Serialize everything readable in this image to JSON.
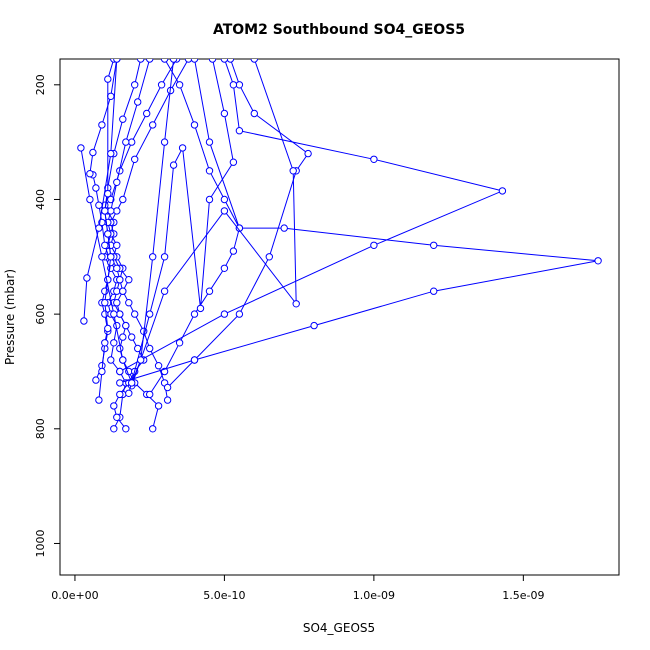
{
  "chart_data": {
    "type": "line",
    "title": "ATOM2 Southbound SO4_GEOS5",
    "xlabel": "SO4_GEOS5",
    "ylabel": "Pressure (mbar)",
    "xlim": [
      -5e-11,
      1.82e-09
    ],
    "ylim": [
      1055,
      155
    ],
    "y_reversed": true,
    "x_ticks": [
      0,
      5e-10,
      1e-09,
      1.5e-09
    ],
    "x_tick_labels": [
      "0.0e+00",
      "5.0e-10",
      "1.0e-09",
      "1.5e-09"
    ],
    "y_ticks": [
      200,
      400,
      600,
      800,
      1000
    ],
    "y_tick_labels": [
      "200",
      "400",
      "600",
      "800",
      "1000"
    ],
    "grid": false,
    "marker": "open-circle",
    "line_color": "#0000ff",
    "series": [
      {
        "points": [
          [
            1.3e-10,
            800
          ],
          [
            1.5e-10,
            780
          ],
          [
            1.6e-10,
            740
          ],
          [
            1.7e-10,
            720
          ],
          [
            1.5e-10,
            700
          ],
          [
            1.2e-10,
            680
          ],
          [
            1.3e-10,
            650
          ],
          [
            1.4e-10,
            620
          ],
          [
            1.2e-10,
            600
          ],
          [
            1.1e-10,
            580
          ],
          [
            1.3e-10,
            560
          ],
          [
            1.4e-10,
            540
          ],
          [
            1.2e-10,
            520
          ],
          [
            1e-10,
            500
          ],
          [
            1.1e-10,
            480
          ],
          [
            1.2e-10,
            460
          ],
          [
            1.3e-10,
            440
          ],
          [
            1.1e-10,
            420
          ],
          [
            1e-10,
            410
          ],
          [
            1.2e-10,
            400
          ],
          [
            1.5e-10,
            350
          ],
          [
            1.9e-10,
            300
          ],
          [
            2.4e-10,
            250
          ],
          [
            2.9e-10,
            200
          ],
          [
            3.4e-10,
            155
          ]
        ]
      },
      {
        "points": [
          [
            2.6e-10,
            800
          ],
          [
            2.8e-10,
            760
          ],
          [
            2.4e-10,
            740
          ],
          [
            2e-10,
            720
          ],
          [
            1.8e-10,
            700
          ],
          [
            1.6e-10,
            680
          ],
          [
            1.5e-10,
            660
          ],
          [
            1.6e-10,
            640
          ],
          [
            1.7e-10,
            620
          ],
          [
            1.5e-10,
            600
          ],
          [
            1.3e-10,
            580
          ],
          [
            1.4e-10,
            560
          ],
          [
            1.5e-10,
            540
          ],
          [
            1.6e-10,
            520
          ],
          [
            1.4e-10,
            500
          ],
          [
            1.2e-10,
            480
          ],
          [
            1.3e-10,
            460
          ],
          [
            1.2e-10,
            440
          ],
          [
            1.4e-10,
            420
          ],
          [
            1.6e-10,
            400
          ],
          [
            2e-10,
            330
          ],
          [
            2.6e-10,
            270
          ],
          [
            3.2e-10,
            210
          ],
          [
            3.8e-10,
            155
          ]
        ]
      },
      {
        "points": [
          [
            1.7e-10,
            800
          ],
          [
            1.4e-10,
            780
          ],
          [
            1.3e-10,
            760
          ],
          [
            1.5e-10,
            740
          ],
          [
            1.8e-10,
            720
          ],
          [
            2e-10,
            700
          ],
          [
            2.3e-10,
            680
          ],
          [
            2.1e-10,
            660
          ],
          [
            1.9e-10,
            640
          ],
          [
            1.7e-10,
            620
          ],
          [
            1.5e-10,
            600
          ],
          [
            1.4e-10,
            580
          ],
          [
            1.6e-10,
            560
          ],
          [
            1.8e-10,
            540
          ],
          [
            1.5e-10,
            520
          ],
          [
            1.3e-10,
            500
          ],
          [
            1.4e-10,
            480
          ],
          [
            1.2e-10,
            460
          ],
          [
            1.1e-10,
            440
          ],
          [
            1.2e-10,
            420
          ],
          [
            1.4e-10,
            370
          ],
          [
            1.7e-10,
            300
          ],
          [
            2.1e-10,
            230
          ],
          [
            2.5e-10,
            155
          ]
        ]
      },
      {
        "points": [
          [
            3.1e-10,
            750
          ],
          [
            3e-10,
            720
          ],
          [
            2.8e-10,
            690
          ],
          [
            2.5e-10,
            660
          ],
          [
            2.3e-10,
            630
          ],
          [
            2e-10,
            600
          ],
          [
            1.8e-10,
            580
          ],
          [
            1.6e-10,
            560
          ],
          [
            1.5e-10,
            540
          ],
          [
            1.4e-10,
            520
          ],
          [
            1.2e-10,
            500
          ],
          [
            1.1e-10,
            460
          ],
          [
            1e-10,
            420
          ],
          [
            1.1e-10,
            380
          ],
          [
            1.3e-10,
            320
          ],
          [
            1.6e-10,
            260
          ],
          [
            2e-10,
            200
          ],
          [
            2.2e-10,
            155
          ]
        ]
      },
      {
        "points": [
          [
            7e-11,
            715
          ],
          [
            9e-11,
            690
          ],
          [
            1e-10,
            660
          ],
          [
            1.1e-10,
            630
          ],
          [
            1e-10,
            600
          ],
          [
            9e-11,
            580
          ],
          [
            1e-10,
            560
          ],
          [
            1.1e-10,
            540
          ],
          [
            1.2e-10,
            510
          ],
          [
            1e-10,
            480
          ],
          [
            9e-11,
            440
          ],
          [
            8e-11,
            410
          ],
          [
            7e-11,
            380
          ],
          [
            6e-11,
            357
          ],
          [
            5e-11,
            355
          ],
          [
            6e-11,
            318
          ],
          [
            9e-11,
            270
          ],
          [
            1.2e-10,
            220
          ],
          [
            1.4e-10,
            155
          ]
        ]
      },
      {
        "points": [
          [
            8e-11,
            750
          ],
          [
            9e-11,
            700
          ],
          [
            1e-10,
            650
          ],
          [
            1.1e-10,
            625
          ],
          [
            1e-10,
            580
          ],
          [
            1.1e-10,
            540
          ],
          [
            1.2e-10,
            500
          ],
          [
            1.1e-10,
            460
          ],
          [
            1e-10,
            420
          ],
          [
            1.1e-10,
            390
          ],
          [
            1.1e-10,
            190
          ],
          [
            1.3e-10,
            155
          ]
        ]
      },
      {
        "points": [
          [
            2.5e-10,
            740
          ],
          [
            3e-10,
            700
          ],
          [
            3.5e-10,
            650
          ],
          [
            4e-10,
            600
          ],
          [
            4.5e-10,
            560
          ],
          [
            5e-10,
            520
          ],
          [
            5.3e-10,
            490
          ],
          [
            5.5e-10,
            450
          ],
          [
            5e-10,
            400
          ],
          [
            4.5e-10,
            350
          ],
          [
            4e-10,
            270
          ],
          [
            3.5e-10,
            200
          ],
          [
            3e-10,
            155
          ]
        ]
      },
      {
        "points": [
          [
            3.1e-10,
            728
          ],
          [
            4e-10,
            680
          ],
          [
            5.5e-10,
            600
          ],
          [
            6.5e-10,
            500
          ],
          [
            7.4e-10,
            350
          ],
          [
            7.8e-10,
            320
          ],
          [
            6e-10,
            250
          ],
          [
            5.5e-10,
            200
          ],
          [
            5.2e-10,
            155
          ]
        ]
      },
      {
        "points": [
          [
            1.5e-10,
            700
          ],
          [
            5e-10,
            600
          ],
          [
            1e-09,
            480
          ],
          [
            1.43e-09,
            385
          ],
          [
            1e-09,
            330
          ],
          [
            5.5e-10,
            280
          ],
          [
            5.3e-10,
            200
          ],
          [
            5e-10,
            155
          ]
        ]
      },
      {
        "points": [
          [
            1.5e-10,
            720
          ],
          [
            4e-10,
            680
          ],
          [
            8e-10,
            620
          ],
          [
            1.2e-09,
            560
          ],
          [
            1.75e-09,
            507
          ],
          [
            1.2e-09,
            480
          ],
          [
            7e-10,
            450
          ],
          [
            5.5e-10,
            450
          ],
          [
            4.5e-10,
            300
          ],
          [
            4e-10,
            155
          ]
        ]
      },
      {
        "points": [
          [
            1.9e-10,
            725
          ],
          [
            3e-10,
            560
          ],
          [
            5e-10,
            420
          ],
          [
            7.4e-10,
            582
          ],
          [
            7.3e-10,
            350
          ],
          [
            6e-10,
            155
          ]
        ]
      },
      {
        "points": [
          [
            1.8e-10,
            738
          ],
          [
            2.5e-10,
            600
          ],
          [
            3e-10,
            500
          ],
          [
            3.3e-10,
            340
          ],
          [
            3.6e-10,
            310
          ],
          [
            4.2e-10,
            590
          ],
          [
            4.5e-10,
            400
          ],
          [
            5.3e-10,
            335
          ],
          [
            5e-10,
            250
          ],
          [
            4.6e-10,
            155
          ]
        ]
      },
      {
        "points": [
          [
            2e-11,
            310
          ],
          [
            5e-11,
            400
          ],
          [
            9e-11,
            500
          ],
          [
            1.3e-10,
            600
          ],
          [
            1.6e-10,
            680
          ],
          [
            1.9e-10,
            720
          ],
          [
            2.2e-10,
            680
          ],
          [
            2.6e-10,
            500
          ],
          [
            3e-10,
            300
          ],
          [
            3.3e-10,
            155
          ]
        ]
      },
      {
        "points": [
          [
            3e-11,
            612
          ],
          [
            4e-11,
            537
          ],
          [
            8e-11,
            450
          ],
          [
            1.2e-10,
            320
          ],
          [
            1.4e-10,
            155
          ]
        ]
      }
    ]
  }
}
